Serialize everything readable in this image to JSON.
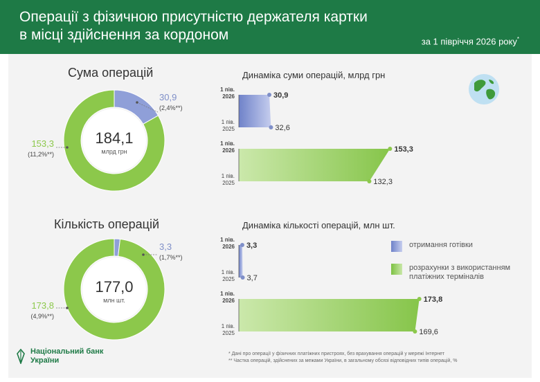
{
  "header": {
    "title_line1": "Операції з фізичною присутністю держателя картки",
    "title_line2": "в місці здійснення за кордоном",
    "period": "за 1 півріччя 2026 року",
    "period_mark": "*"
  },
  "sections": {
    "sum_title": "Сума операцій",
    "count_title": "Кількість операцій"
  },
  "legend": {
    "cash": "отримання готівки",
    "terminals": "розрахунки з використанням платіжних терміналів"
  },
  "colors": {
    "header_green": "#1e7a46",
    "cash_blue": "#8f9fd8",
    "terminal_green": "#8cc84b"
  },
  "icons": [
    "globe-icon",
    "nbu-logo-icon"
  ],
  "logo": {
    "text": "Національний банк України"
  },
  "footnotes": [
    "* Дані про операції у фізичних платіжних пристроях, без врахування операцій у мережі Інтернет",
    "** Частка операцій, здійснених за межами України, в загальному обсязі відповідних типів операцій, %"
  ],
  "chart_data": [
    {
      "type": "pie",
      "id": "sum_donut",
      "center_value": "184,1",
      "center_unit": "млрд грн",
      "slices": [
        {
          "label": "отримання готівки",
          "value": 30.9,
          "value_text": "30,9",
          "share_text": "(2,4%**)",
          "color": "#8f9fd8"
        },
        {
          "label": "розрахунки з використанням платіжних терміналів",
          "value": 153.3,
          "value_text": "153,3",
          "share_text": "(11,2%**)",
          "color": "#8cc84b"
        }
      ]
    },
    {
      "type": "bar",
      "id": "sum_bars",
      "title": "Динаміка суми операцій, млрд грн",
      "categories": [
        "1 пів. 2026",
        "1 пів. 2025"
      ],
      "xlim": [
        0,
        165
      ],
      "series": [
        {
          "name": "отримання готівки",
          "values": [
            30.9,
            32.6
          ],
          "labels": [
            "30,9",
            "32,6"
          ],
          "color": "#8f9fd8"
        },
        {
          "name": "розрахунки з використанням платіжних терміналів",
          "values": [
            153.3,
            132.3
          ],
          "labels": [
            "153,3",
            "132,3"
          ],
          "color": "#8cc84b"
        }
      ]
    },
    {
      "type": "pie",
      "id": "count_donut",
      "center_value": "177,0",
      "center_unit": "млн шт.",
      "slices": [
        {
          "label": "отримання готівки",
          "value": 3.3,
          "value_text": "3,3",
          "share_text": "(1,7%**)",
          "color": "#8f9fd8"
        },
        {
          "label": "розрахунки з використанням платіжних терміналів",
          "value": 173.8,
          "value_text": "173,8",
          "share_text": "(4,9%**)",
          "color": "#8cc84b"
        }
      ]
    },
    {
      "type": "bar",
      "id": "count_bars",
      "title": "Динаміка кількості операцій, млн шт.",
      "categories": [
        "1 пів. 2026",
        "1 пів. 2025"
      ],
      "xlim": [
        0,
        180
      ],
      "series": [
        {
          "name": "отримання готівки",
          "values": [
            3.3,
            3.7
          ],
          "labels": [
            "3,3",
            "3,7"
          ],
          "color": "#8f9fd8"
        },
        {
          "name": "розрахунки з використанням платіжних терміналів",
          "values": [
            173.8,
            169.6
          ],
          "labels": [
            "173,8",
            "169,6"
          ],
          "color": "#8cc84b"
        }
      ]
    }
  ]
}
